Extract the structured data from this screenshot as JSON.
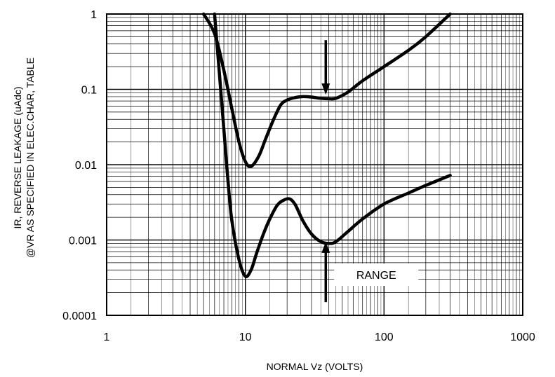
{
  "chart_data": {
    "type": "line",
    "x_scale": "log",
    "y_scale": "log",
    "xlim": [
      1,
      1000
    ],
    "ylim": [
      0.0001,
      1
    ],
    "xlabel": "NORMAL Vz (VOLTS)",
    "ylabel_lines": [
      "IR, REVERSE LEAKAGE (uAdc)",
      "@VR AS SPECIFIED IN ELEC.CHAR, TABLE"
    ],
    "x_ticks": [
      1,
      10,
      100,
      1000
    ],
    "x_tick_labels": [
      "1",
      "10",
      "100",
      "1000"
    ],
    "y_ticks": [
      1,
      0.1,
      0.01,
      0.001,
      0.0001
    ],
    "y_tick_labels": [
      "1",
      "0.1",
      "0.01",
      "0.001",
      "0.0001"
    ],
    "grid": true,
    "line_color": "#000000",
    "series": [
      {
        "x": [
          5.0,
          6.0,
          7.0,
          8.0,
          9.0,
          10.0,
          11.0,
          12.5,
          14.0,
          16.0,
          18.0,
          20.0,
          23.0,
          26.0,
          30.0,
          35.0,
          40.0,
          45.0,
          55.0,
          70.0,
          100.0,
          150.0,
          200.0,
          300.0
        ],
        "y": [
          1.0,
          0.55,
          0.18,
          0.055,
          0.02,
          0.011,
          0.0095,
          0.013,
          0.022,
          0.04,
          0.062,
          0.072,
          0.078,
          0.08,
          0.079,
          0.076,
          0.075,
          0.076,
          0.092,
          0.13,
          0.2,
          0.33,
          0.5,
          1.0
        ]
      },
      {
        "x": [
          6.0,
          7.0,
          7.5,
          8.0,
          9.0,
          10.0,
          11.0,
          12.0,
          13.5,
          15.0,
          17.0,
          19.0,
          21.0,
          23.0,
          26.0,
          30.0,
          35.0,
          40.0,
          45.0,
          55.0,
          70.0,
          100.0,
          150.0,
          200.0,
          300.0
        ],
        "y": [
          1.0,
          0.03,
          0.006,
          0.0018,
          0.00055,
          0.00033,
          0.0004,
          0.00065,
          0.0012,
          0.0019,
          0.0029,
          0.0034,
          0.0035,
          0.0029,
          0.0018,
          0.0012,
          0.00095,
          0.0009,
          0.00095,
          0.0013,
          0.0019,
          0.003,
          0.0042,
          0.0053,
          0.0072
        ]
      }
    ],
    "annotations": {
      "range_label": "RANGE",
      "arrow_top": {
        "x": 38,
        "y_from": 0.45,
        "y_to": 0.085
      },
      "arrow_bottom": {
        "x": 38,
        "y_from": 0.00015,
        "y_to": 0.00095
      }
    }
  }
}
